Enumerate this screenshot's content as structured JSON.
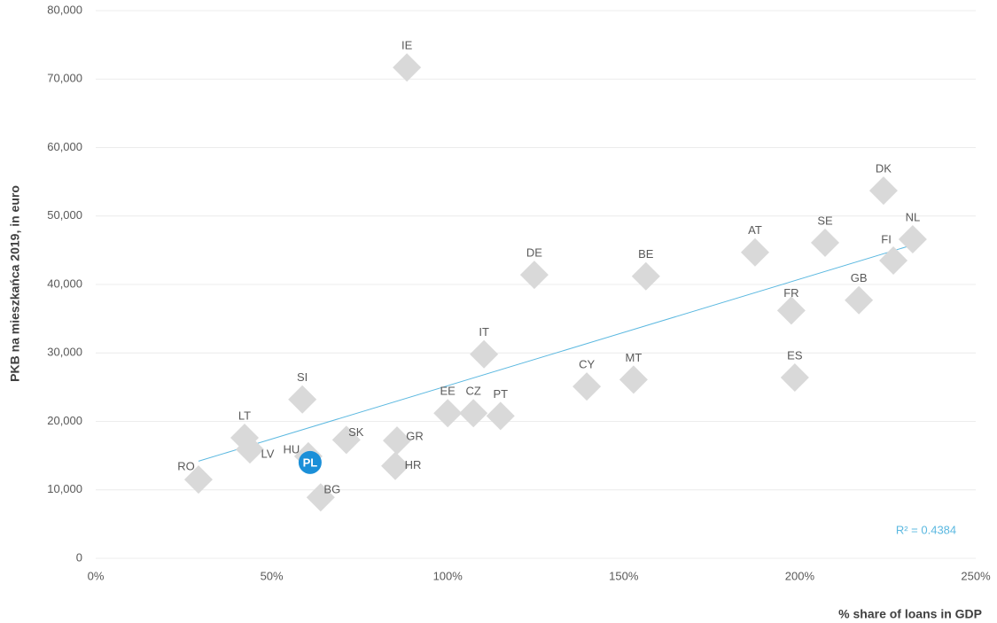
{
  "chart_data": {
    "type": "scatter",
    "x_label": "% share of loans in GDP",
    "y_label": "PKB na mieszkańca 2019, in euro",
    "annotation": "R² = 0.4384",
    "labels": [
      "RO",
      "LT",
      "LV",
      "SI",
      "HU",
      "PL",
      "BG",
      "SK",
      "GR",
      "HR",
      "IE",
      "EE",
      "CZ",
      "IT",
      "PT",
      "DE",
      "CY",
      "MT",
      "BE",
      "AT",
      "FR",
      "ES",
      "SE",
      "GB",
      "DK",
      "FI",
      "NL"
    ],
    "x": [
      29.2,
      42.3,
      43.8,
      58.7,
      60.4,
      60.9,
      63.9,
      71.2,
      85.6,
      85.1,
      88.4,
      100,
      107.3,
      110.3,
      115,
      124.6,
      139.5,
      152.8,
      156.3,
      187.3,
      197.6,
      198.6,
      207.2,
      216.8,
      223.8,
      226.6,
      232.1
    ],
    "values": [
      11500,
      17600,
      15900,
      23200,
      14900,
      14000,
      8900,
      17300,
      17200,
      13500,
      71700,
      21200,
      21200,
      29800,
      20800,
      41400,
      25100,
      26100,
      41200,
      44700,
      36200,
      26400,
      46100,
      37700,
      53700,
      43500,
      46600
    ],
    "color": "#d9d9d9",
    "colors": [
      "#d9d9d9",
      "#d9d9d9",
      "#d9d9d9",
      "#d9d9d9",
      "#d9d9d9",
      "#1b8fd8",
      "#d9d9d9",
      "#d9d9d9",
      "#d9d9d9",
      "#d9d9d9",
      "#d9d9d9",
      "#d9d9d9",
      "#d9d9d9",
      "#d9d9d9",
      "#d9d9d9",
      "#d9d9d9",
      "#d9d9d9",
      "#d9d9d9",
      "#d9d9d9",
      "#d9d9d9",
      "#d9d9d9",
      "#d9d9d9",
      "#d9d9d9",
      "#d9d9d9",
      "#d9d9d9",
      "#d9d9d9",
      "#d9d9d9"
    ],
    "trend_color": "#5bb8e0",
    "xlim": [
      0,
      250
    ],
    "xticks": [
      {
        "value": 0,
        "label": "0%"
      },
      {
        "value": 50,
        "label": "50%"
      },
      {
        "value": 100,
        "label": "100%"
      },
      {
        "value": 150,
        "label": "150%"
      },
      {
        "value": 200,
        "label": "200%"
      },
      {
        "value": 250,
        "label": "250%"
      }
    ],
    "ylim": [
      0,
      80000
    ],
    "yticks": [
      0,
      {
        "value": 10000,
        "label": "10,000"
      },
      {
        "value": 20000,
        "label": "20,000"
      },
      {
        "value": 30000,
        "label": "30,000"
      },
      {
        "value": 40000,
        "label": "40,000"
      },
      {
        "value": 50000,
        "label": "50,000"
      },
      {
        "value": 60000,
        "label": "60,000"
      },
      {
        "value": 70000,
        "label": "70,000"
      },
      {
        "value": 80000,
        "label": "80,000"
      }
    ],
    "grid": true
  }
}
